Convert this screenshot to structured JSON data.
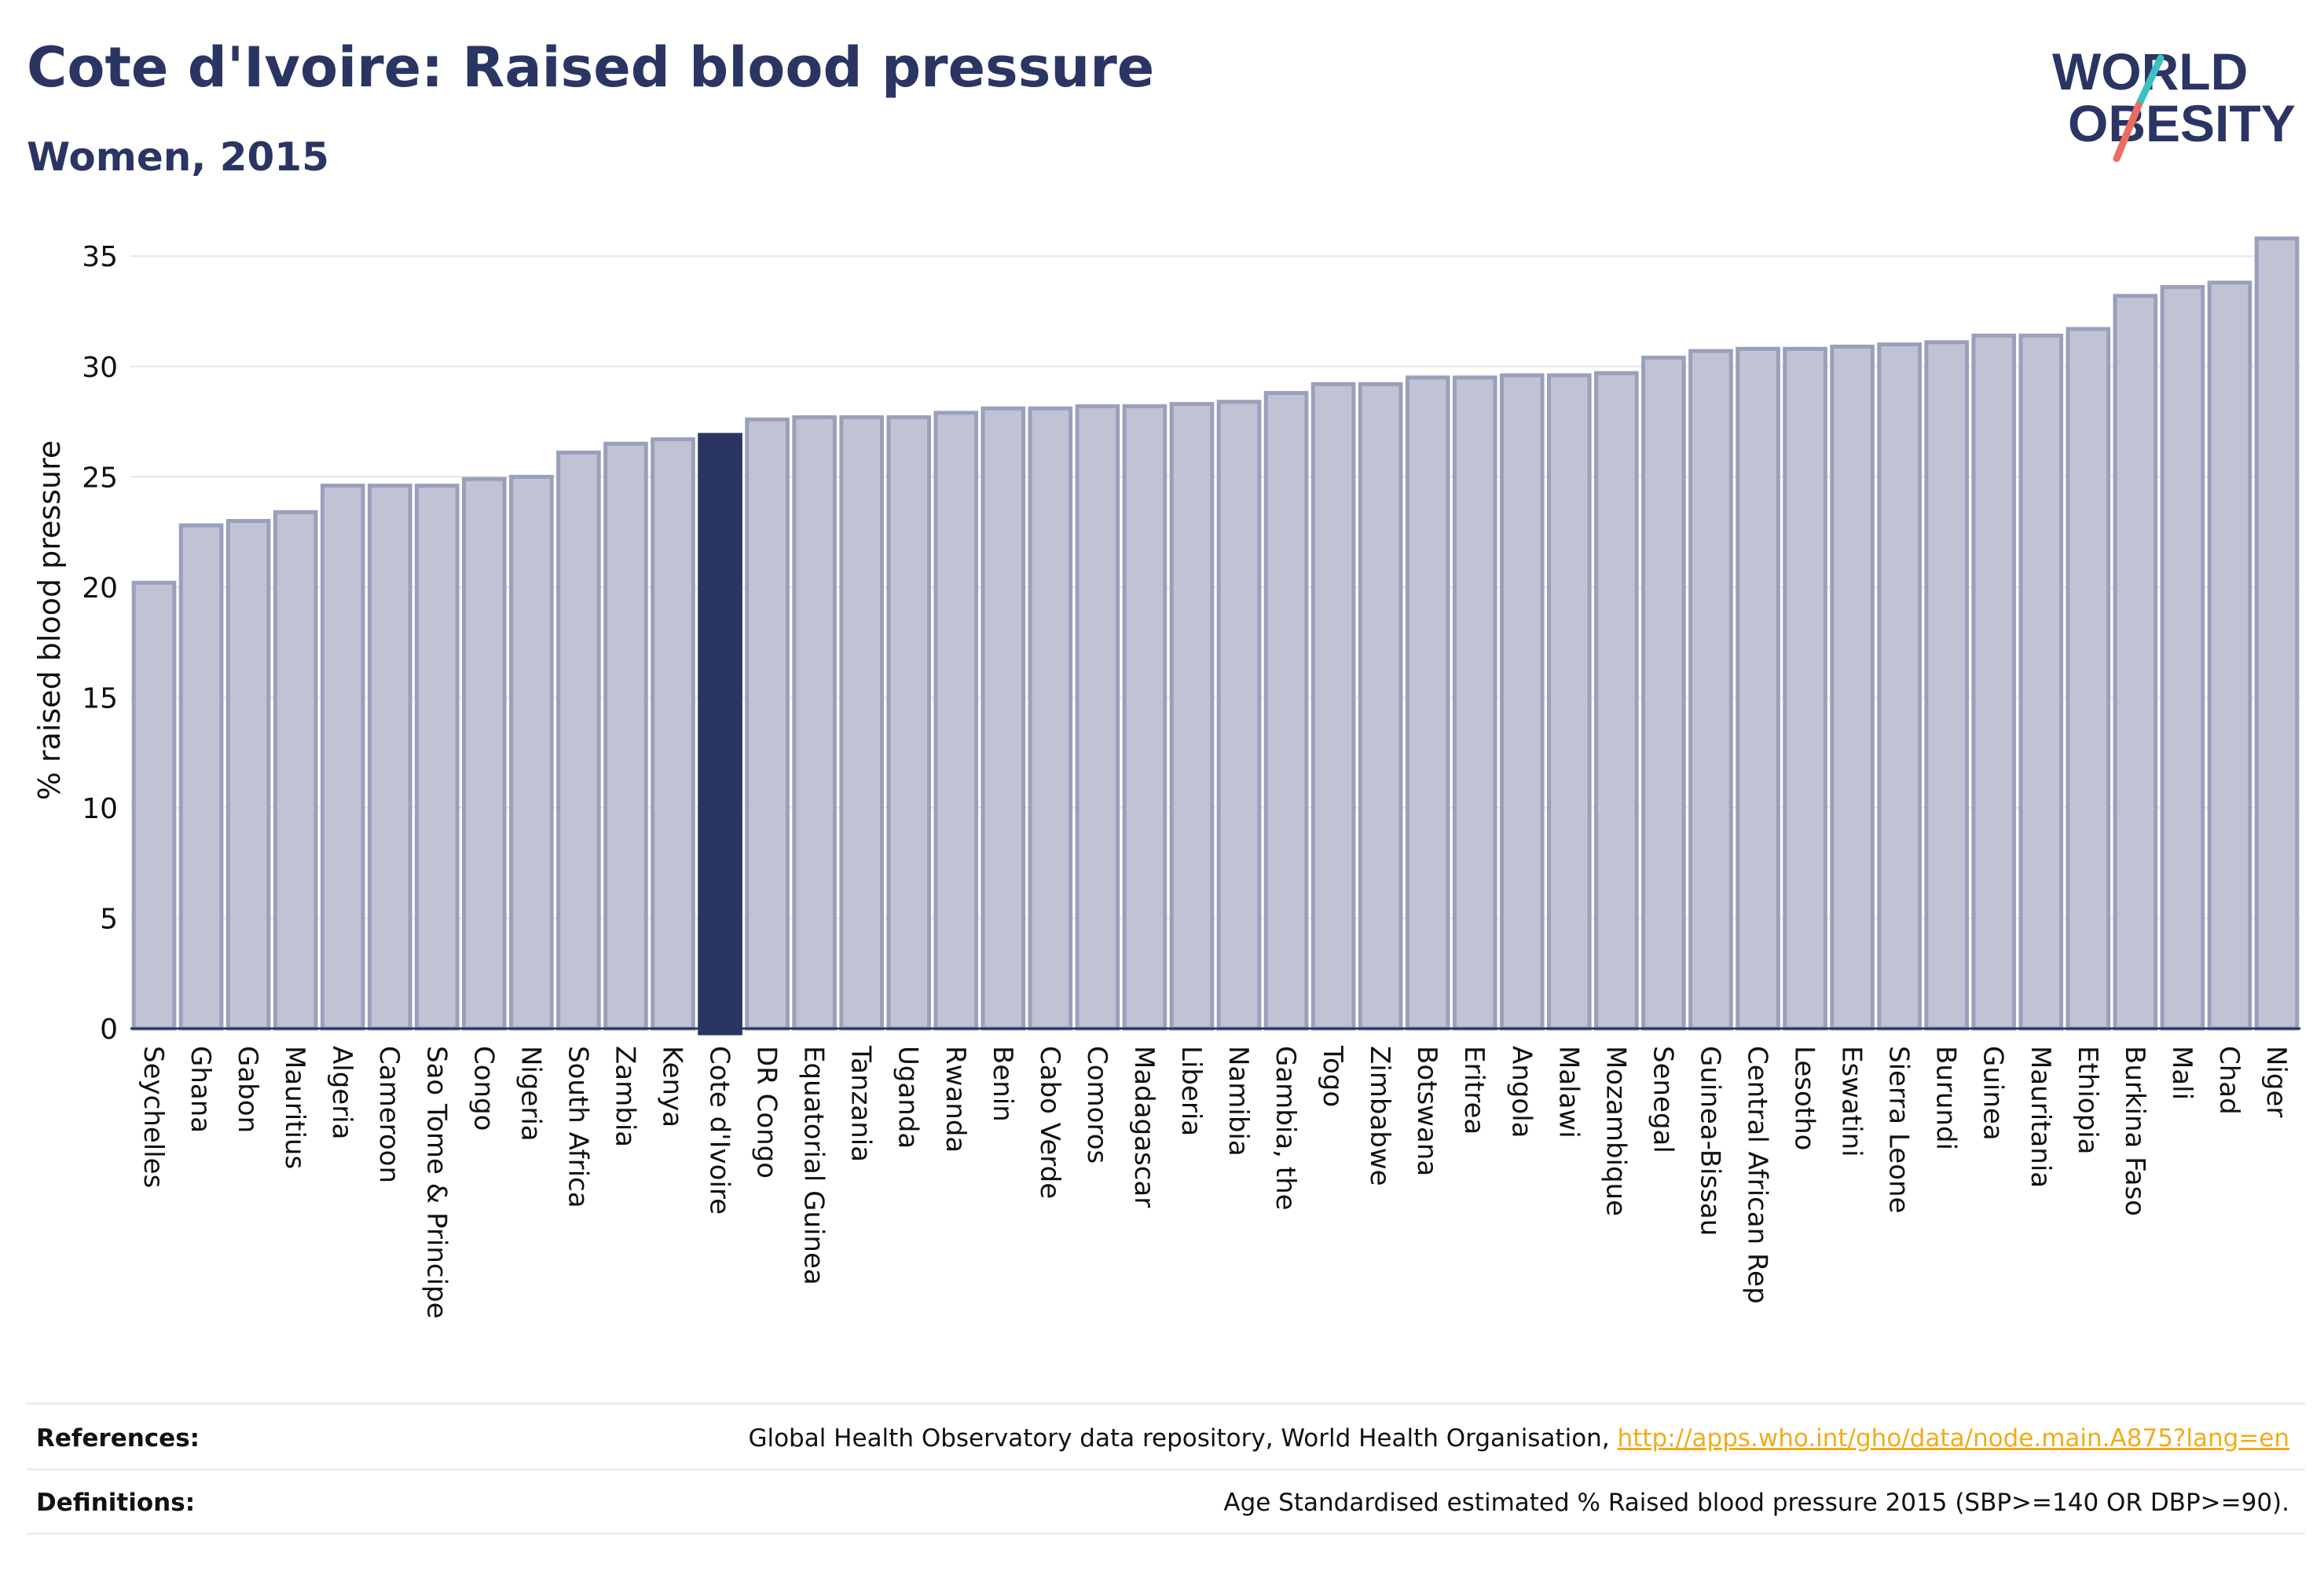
{
  "header": {
    "title": "Cote d'Ivoire: Raised blood pressure",
    "subtitle": "Women, 2015"
  },
  "logo": {
    "line1": "WORLD",
    "line2": "OBESITY",
    "colors": {
      "text": "#2a3563",
      "slash_top": "#3cc1c0",
      "slash_bottom": "#ec6d5f"
    }
  },
  "colors": {
    "bar_fill": "#bfc3d3",
    "bar_stroke": "#9aa0bb",
    "highlight": "#2a3563",
    "axis": "#2a3563",
    "grid": "#e3e5ee",
    "link": "#f0ac1a"
  },
  "chart_data": {
    "type": "bar",
    "title": "",
    "xlabel": "",
    "ylabel": "% raised blood pressure",
    "ylim": [
      0,
      37
    ],
    "yticks": [
      0,
      5,
      10,
      15,
      20,
      25,
      30,
      35
    ],
    "grid": true,
    "highlight_category": "Cote d'Ivoire",
    "categories": [
      "Seychelles",
      "Ghana",
      "Gabon",
      "Mauritius",
      "Algeria",
      "Cameroon",
      "Sao Tome & Principe",
      "Congo",
      "Nigeria",
      "South Africa",
      "Zambia",
      "Kenya",
      "Cote d'Ivoire",
      "DR Congo",
      "Equatorial Guinea",
      "Tanzania",
      "Uganda",
      "Rwanda",
      "Benin",
      "Cabo Verde",
      "Comoros",
      "Madagascar",
      "Liberia",
      "Namibia",
      "Gambia, the",
      "Togo",
      "Zimbabwe",
      "Botswana",
      "Eritrea",
      "Angola",
      "Malawi",
      "Mozambique",
      "Senegal",
      "Guinea-Bissau",
      "Central African Rep",
      "Lesotho",
      "Eswatini",
      "Sierra Leone",
      "Burundi",
      "Guinea",
      "Mauritania",
      "Ethiopia",
      "Burkina Faso",
      "Mali",
      "Chad",
      "Niger"
    ],
    "values": [
      20.2,
      22.8,
      23.0,
      23.4,
      24.6,
      24.6,
      24.6,
      24.9,
      25.0,
      26.1,
      26.5,
      26.7,
      26.9,
      27.6,
      27.7,
      27.7,
      27.7,
      27.9,
      28.1,
      28.1,
      28.2,
      28.2,
      28.3,
      28.4,
      28.8,
      29.2,
      29.2,
      29.5,
      29.5,
      29.6,
      29.6,
      29.7,
      30.4,
      30.7,
      30.8,
      30.8,
      30.9,
      31.0,
      31.1,
      31.4,
      31.4,
      31.7,
      33.2,
      33.6,
      33.8,
      35.8
    ]
  },
  "footer": {
    "references_label": "References:",
    "references_text": "Global Health Observatory data repository, World Health Organisation, ",
    "references_link": "http://apps.who.int/gho/data/node.main.A875?lang=en",
    "definitions_label": "Definitions:",
    "definitions_text": "Age Standardised estimated % Raised blood pressure 2015 (SBP>=140 OR DBP>=90)."
  }
}
